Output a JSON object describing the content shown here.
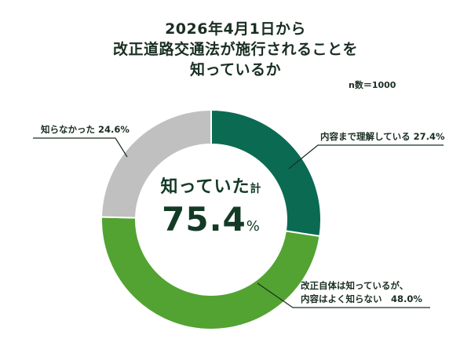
{
  "title": {
    "line1": "2026年4月1日から",
    "line2": "改正道路交通法が施行されることを",
    "line3": "知っているか"
  },
  "sample_size": "n数＝1000",
  "center": {
    "caption": "知っていた",
    "caption_suffix": "計",
    "value": "75.4",
    "unit": "%"
  },
  "labels": {
    "understand": "内容まで理解している 27.4%",
    "partial_line1": "改正自体は知っているが、",
    "partial_line2": "内容はよく知らない　48.0%",
    "unaware": "知らなかった 24.6%"
  },
  "colors": {
    "understand": "#0b6a52",
    "partial": "#52a331",
    "unaware": "#c0c0c0",
    "text": "#1a2e22"
  },
  "chart_data": {
    "type": "pie",
    "variant": "donut",
    "title": "2026年4月1日から改正道路交通法が施行されることを知っているか",
    "subtitle": "n数＝1000",
    "categories": [
      "内容まで理解している",
      "改正自体は知っているが、内容はよく知らない",
      "知らなかった"
    ],
    "values": [
      27.4,
      48.0,
      24.6
    ],
    "unit": "%",
    "colors": [
      "#0b6a52",
      "#52a331",
      "#c0c0c0"
    ],
    "start_angle": "12 o'clock, clockwise",
    "center_annotation": "知っていた計 75.4%",
    "legend": "none (callout labels)"
  }
}
